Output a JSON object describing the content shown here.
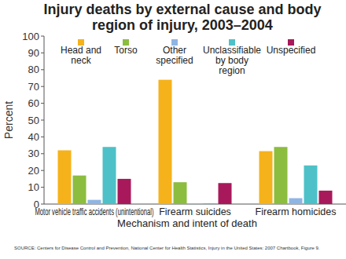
{
  "chart_data": {
    "type": "bar",
    "title": "Injury deaths by external cause and body region of injury, 2003–2004",
    "x_label": "Mechanism and intent of death",
    "y_label": "Percent",
    "source": "SOURCE: Centers for Disease Control and Prevention, National Center for Health Statistics, Injury in the United States: 2007 Chartbook, Figure 9.",
    "categories": [
      "Motor vehicle traffic accidents (unintentional)",
      "Firearm suicides",
      "Firearm homicides"
    ],
    "series": [
      {
        "name": "Head and neck",
        "color": "#f5b21a",
        "values": [
          32,
          74,
          31.5
        ]
      },
      {
        "name": "Torso",
        "color": "#8cbd3f",
        "values": [
          17,
          13,
          34
        ]
      },
      {
        "name": "Other specified",
        "color": "#8fb5e3",
        "values": [
          2.5,
          0.3,
          3.5
        ]
      },
      {
        "name": "Unclassifiable by body region",
        "color": "#4dc1c7",
        "values": [
          34,
          0.5,
          23
        ]
      },
      {
        "name": "Unspecified",
        "color": "#a8195b",
        "values": [
          15,
          12.5,
          8
        ]
      }
    ],
    "ylim": [
      0,
      100
    ],
    "yticks": [
      0,
      10,
      20,
      30,
      40,
      50,
      60,
      70,
      80,
      90,
      100
    ],
    "grid": false,
    "legend": "top"
  }
}
